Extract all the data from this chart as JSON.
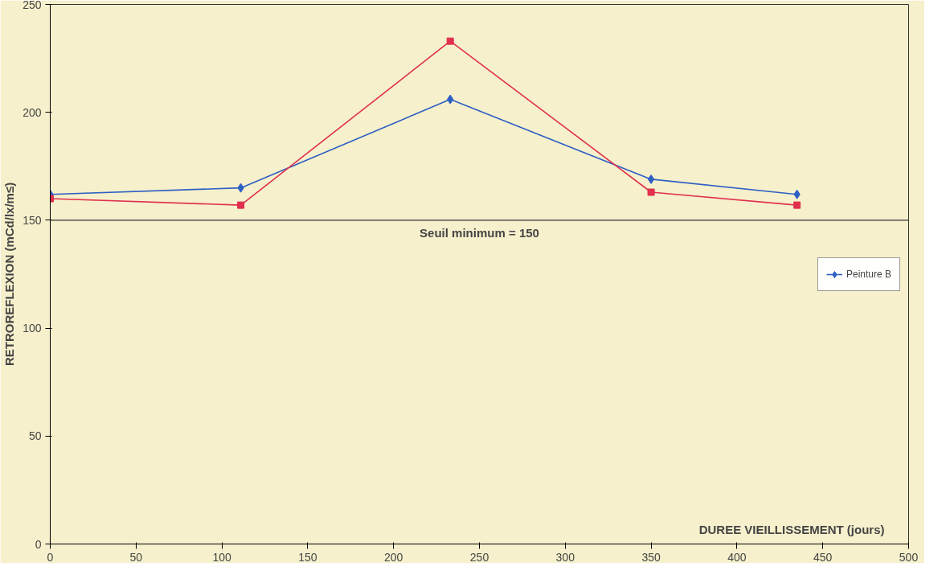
{
  "chart_data": {
    "type": "line",
    "xlabel": "DUREE VIEILLISSEMENT (jours)",
    "ylabel": "RETROREFLEXION (mCd/lx/m≤)",
    "x": [
      0,
      111,
      233,
      350,
      435
    ],
    "series": [
      {
        "name": "Peinture B",
        "color": "#2e5fc4",
        "marker": "diamond",
        "values": [
          162,
          165,
          206,
          169,
          162
        ]
      },
      {
        "color": "#e0304e",
        "marker": "square",
        "values": [
          160,
          157,
          233,
          163,
          157
        ]
      }
    ],
    "xlim": [
      0,
      500
    ],
    "ylim": [
      0,
      250
    ],
    "xticks": [
      0,
      50,
      100,
      150,
      200,
      250,
      300,
      350,
      400,
      450,
      500
    ],
    "yticks": [
      0,
      50,
      100,
      150,
      200,
      250
    ],
    "ref_lines": [
      {
        "axis": "y",
        "value": 150,
        "label": "Seuil minimum = 150",
        "color": "#333333"
      }
    ],
    "grid": false,
    "legend": "right",
    "line_style": "solid"
  }
}
